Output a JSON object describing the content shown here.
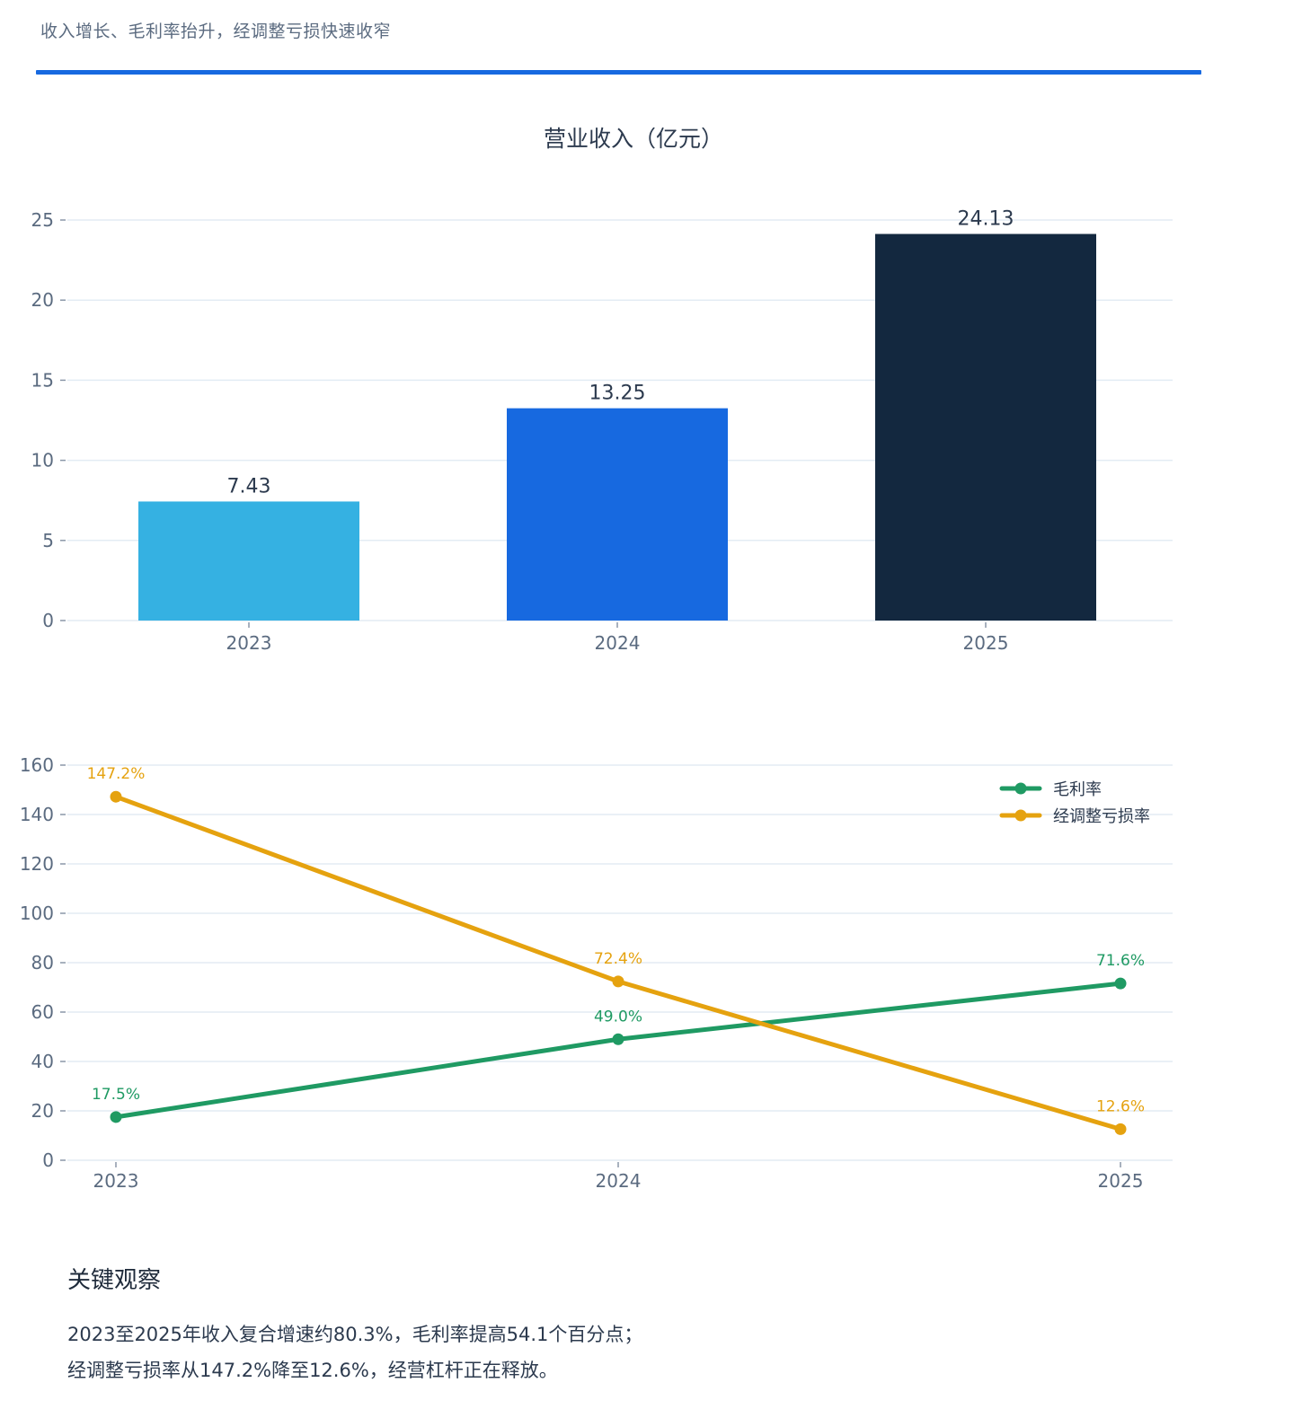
{
  "header": {
    "subtitle": "收入增长、毛利率抬升，经调整亏损快速收窄"
  },
  "colors": {
    "accent": "#1769e0",
    "bar_2023": "#35b1e2",
    "bar_2024": "#1769e0",
    "bar_2025": "#13283f",
    "gross_margin": "#1f9a63",
    "adjusted_loss": "#e5a20f"
  },
  "chart_data": [
    {
      "type": "bar",
      "title": "营业收入（亿元）",
      "categories": [
        "2023",
        "2024",
        "2025"
      ],
      "values": [
        7.43,
        13.25,
        24.13
      ],
      "value_labels": [
        "7.43",
        "13.25",
        "24.13"
      ],
      "colors": [
        "#35b1e2",
        "#1769e0",
        "#13283f"
      ],
      "ylim": [
        0,
        25
      ],
      "yticks": [
        0,
        5,
        10,
        15,
        20,
        25
      ],
      "grid": true
    },
    {
      "type": "line",
      "categories": [
        "2023",
        "2024",
        "2025"
      ],
      "series": [
        {
          "name": "毛利率",
          "values": [
            17.5,
            49.0,
            71.6
          ],
          "labels": [
            "17.5%",
            "49.0%",
            "71.6%"
          ],
          "color": "#1f9a63"
        },
        {
          "name": "经调整亏损率",
          "values": [
            147.2,
            72.4,
            12.6
          ],
          "labels": [
            "147.2%",
            "72.4%",
            "12.6%"
          ],
          "color": "#e5a20f"
        }
      ],
      "ylim": [
        0,
        160
      ],
      "yticks": [
        0,
        20,
        40,
        60,
        80,
        100,
        120,
        140,
        160
      ],
      "legend": "top-right",
      "grid": true
    }
  ],
  "observations": {
    "title": "关键观察",
    "lines": [
      "2023至2025年收入复合增速约80.3%，毛利率提高54.1个百分点；",
      "经调整亏损率从147.2%降至12.6%，经营杠杆正在释放。"
    ]
  }
}
